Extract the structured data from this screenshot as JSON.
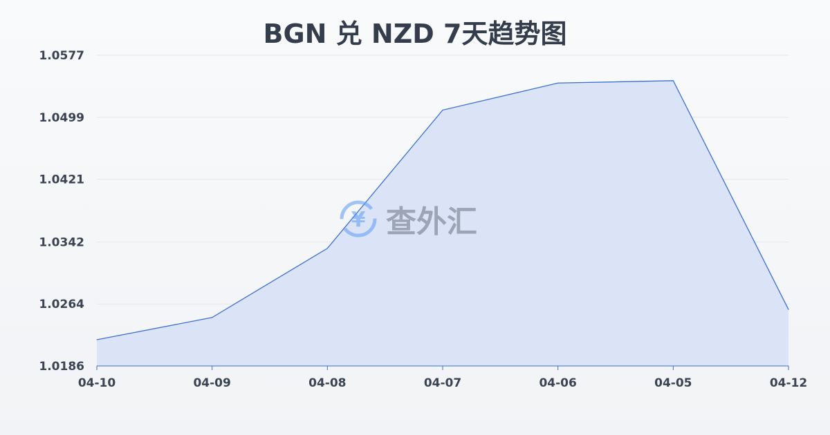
{
  "chart_data": {
    "type": "area",
    "title": "BGN 兑 NZD 7天趋势图",
    "categories": [
      "04-10",
      "04-09",
      "04-08",
      "04-07",
      "04-06",
      "04-05",
      "04-12"
    ],
    "series": [
      {
        "values": [
          1.0219,
          1.0247,
          1.0334,
          1.0508,
          1.0542,
          1.0545,
          1.0257
        ]
      }
    ],
    "yticks": [
      "1.0186",
      "1.0264",
      "1.0342",
      "1.0421",
      "1.0499",
      "1.0577"
    ],
    "ylim": [
      1.0186,
      1.0577
    ],
    "grid": true,
    "colors": {
      "line": "#3b6fd4",
      "fill": "#d6e1f6"
    }
  },
  "watermark": {
    "text": "查外汇",
    "icon": "yen-exchange-icon"
  }
}
